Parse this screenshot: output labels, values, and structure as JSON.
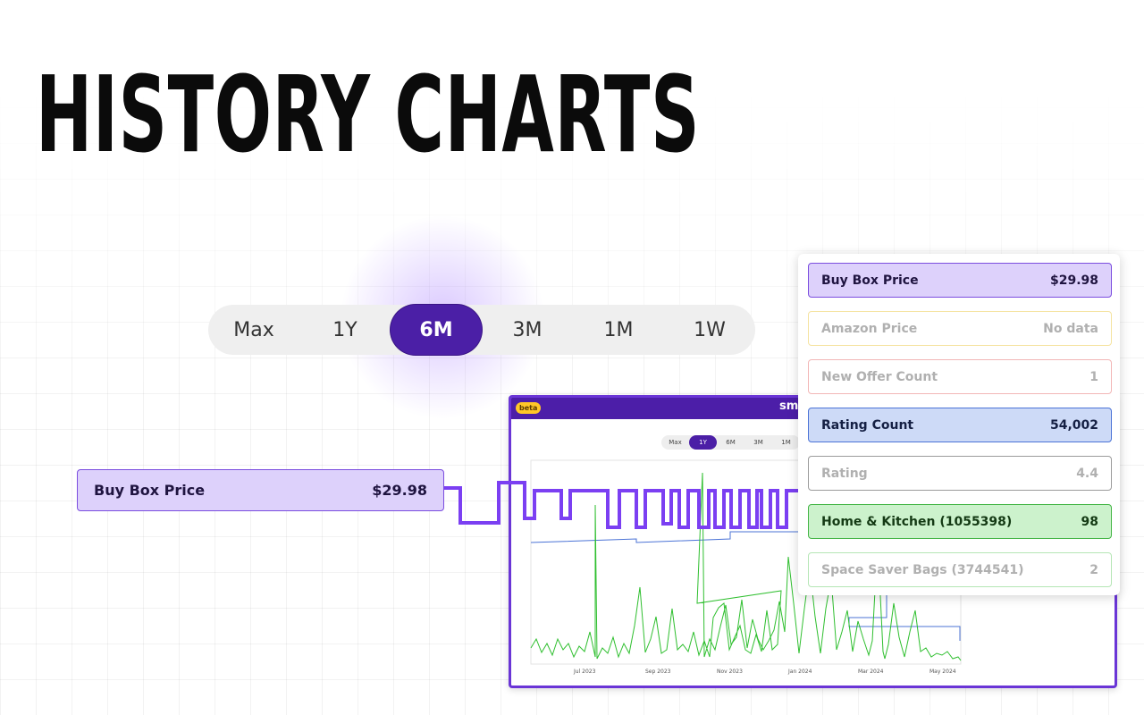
{
  "headline": "HISTORY CHARTS",
  "range_selector": {
    "options": [
      "Max",
      "1Y",
      "6M",
      "3M",
      "1M",
      "1W"
    ],
    "active": "6M"
  },
  "left_label": {
    "name": "Buy Box Price",
    "value": "$29.98"
  },
  "screenshot": {
    "badge": "beta",
    "brand": "sme",
    "mini_range": {
      "options": [
        "Max",
        "1Y",
        "6M",
        "3M",
        "1M"
      ],
      "active": "1Y"
    },
    "x_ticks": [
      "Jul 2023",
      "Sep 2023",
      "Nov 2023",
      "Jan 2024",
      "Mar 2024",
      "May 2024"
    ]
  },
  "stats_panel": {
    "rows": [
      {
        "label": "Buy Box Price",
        "value": "$29.98",
        "state": "active",
        "color": "#7b4ddf",
        "bg": "#ddd1fb",
        "text": "#1f1440"
      },
      {
        "label": "Amazon Price",
        "value": "No data",
        "state": "inactive",
        "color": "#f5e3a0",
        "bg": "#ffffff",
        "text": "#b0b0b0"
      },
      {
        "label": "New Offer Count",
        "value": "1",
        "state": "inactive",
        "color": "#f2b6b6",
        "bg": "#ffffff",
        "text": "#b0b0b0"
      },
      {
        "label": "Rating Count",
        "value": "54,002",
        "state": "active",
        "color": "#4b73d6",
        "bg": "#cddaf7",
        "text": "#152044"
      },
      {
        "label": "Rating",
        "value": "4.4",
        "state": "inactive",
        "color": "#9b9b9b",
        "bg": "#ffffff",
        "text": "#b0b0b0"
      },
      {
        "label": "Home & Kitchen (1055398)",
        "value": "98",
        "state": "active",
        "color": "#43b545",
        "bg": "#ccf2cc",
        "text": "#143a14"
      },
      {
        "label": "Space Saver Bags (3744541)",
        "value": "2",
        "state": "inactive",
        "color": "#b5e6b5",
        "bg": "#ffffff",
        "text": "#b0b0b0"
      }
    ]
  },
  "colors": {
    "accent": "#4b1fa6",
    "buy_box_line": "#7b3ff2",
    "rating_count_line": "#4b73d6",
    "sales_rank_line": "#2fbf2f"
  }
}
